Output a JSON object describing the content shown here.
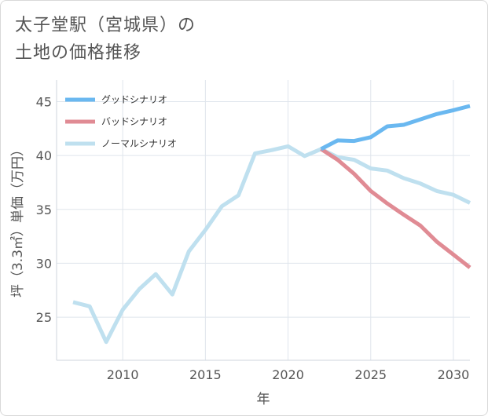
{
  "title_lines": [
    "太子堂駅（宮城県）の",
    "土地の価格推移"
  ],
  "colors": {
    "good": "#6ab8f0",
    "bad": "#e08b94",
    "normal": "#bfe0ef",
    "grid": "#dfe5ec",
    "axis": "#cfd6de",
    "text": "#555555"
  },
  "chart_data": {
    "type": "line",
    "title": "太子堂駅（宮城県）の土地の価格推移",
    "xlabel": "年",
    "ylabel": "坪（3.3㎡）単価（万円）",
    "xlim": [
      2006,
      2031
    ],
    "ylim": [
      21,
      47
    ],
    "xticks": [
      2010,
      2015,
      2020,
      2025,
      2030
    ],
    "yticks": [
      25,
      30,
      35,
      40,
      45
    ],
    "grid": true,
    "legend_position": "top-left",
    "series": [
      {
        "name": "グッドシナリオ",
        "color": "#6ab8f0",
        "x": [
          2022,
          2023,
          2024,
          2025,
          2026,
          2027,
          2028,
          2029,
          2030,
          2031
        ],
        "y": [
          40.6,
          41.4,
          41.35,
          41.7,
          42.7,
          42.85,
          43.35,
          43.85,
          44.2,
          44.6
        ]
      },
      {
        "name": "バッドシナリオ",
        "color": "#e08b94",
        "x": [
          2022,
          2023,
          2024,
          2025,
          2026,
          2027,
          2028,
          2029,
          2030,
          2031
        ],
        "y": [
          40.6,
          39.6,
          38.3,
          36.7,
          35.55,
          34.5,
          33.5,
          32.0,
          30.8,
          29.6
        ]
      },
      {
        "name": "ノーマルシナリオ",
        "color": "#bfe0ef",
        "x": [
          2007,
          2008,
          2009,
          2010,
          2011,
          2012,
          2013,
          2014,
          2015,
          2016,
          2017,
          2018,
          2019,
          2020,
          2021,
          2022,
          2023,
          2024,
          2025,
          2026,
          2027,
          2028,
          2029,
          2030,
          2031
        ],
        "y": [
          26.4,
          26.0,
          22.7,
          25.7,
          27.6,
          29.0,
          27.1,
          31.1,
          33.1,
          35.3,
          36.3,
          40.2,
          40.5,
          40.85,
          39.95,
          40.6,
          39.85,
          39.6,
          38.8,
          38.6,
          37.9,
          37.4,
          36.7,
          36.35,
          35.6
        ]
      }
    ]
  }
}
